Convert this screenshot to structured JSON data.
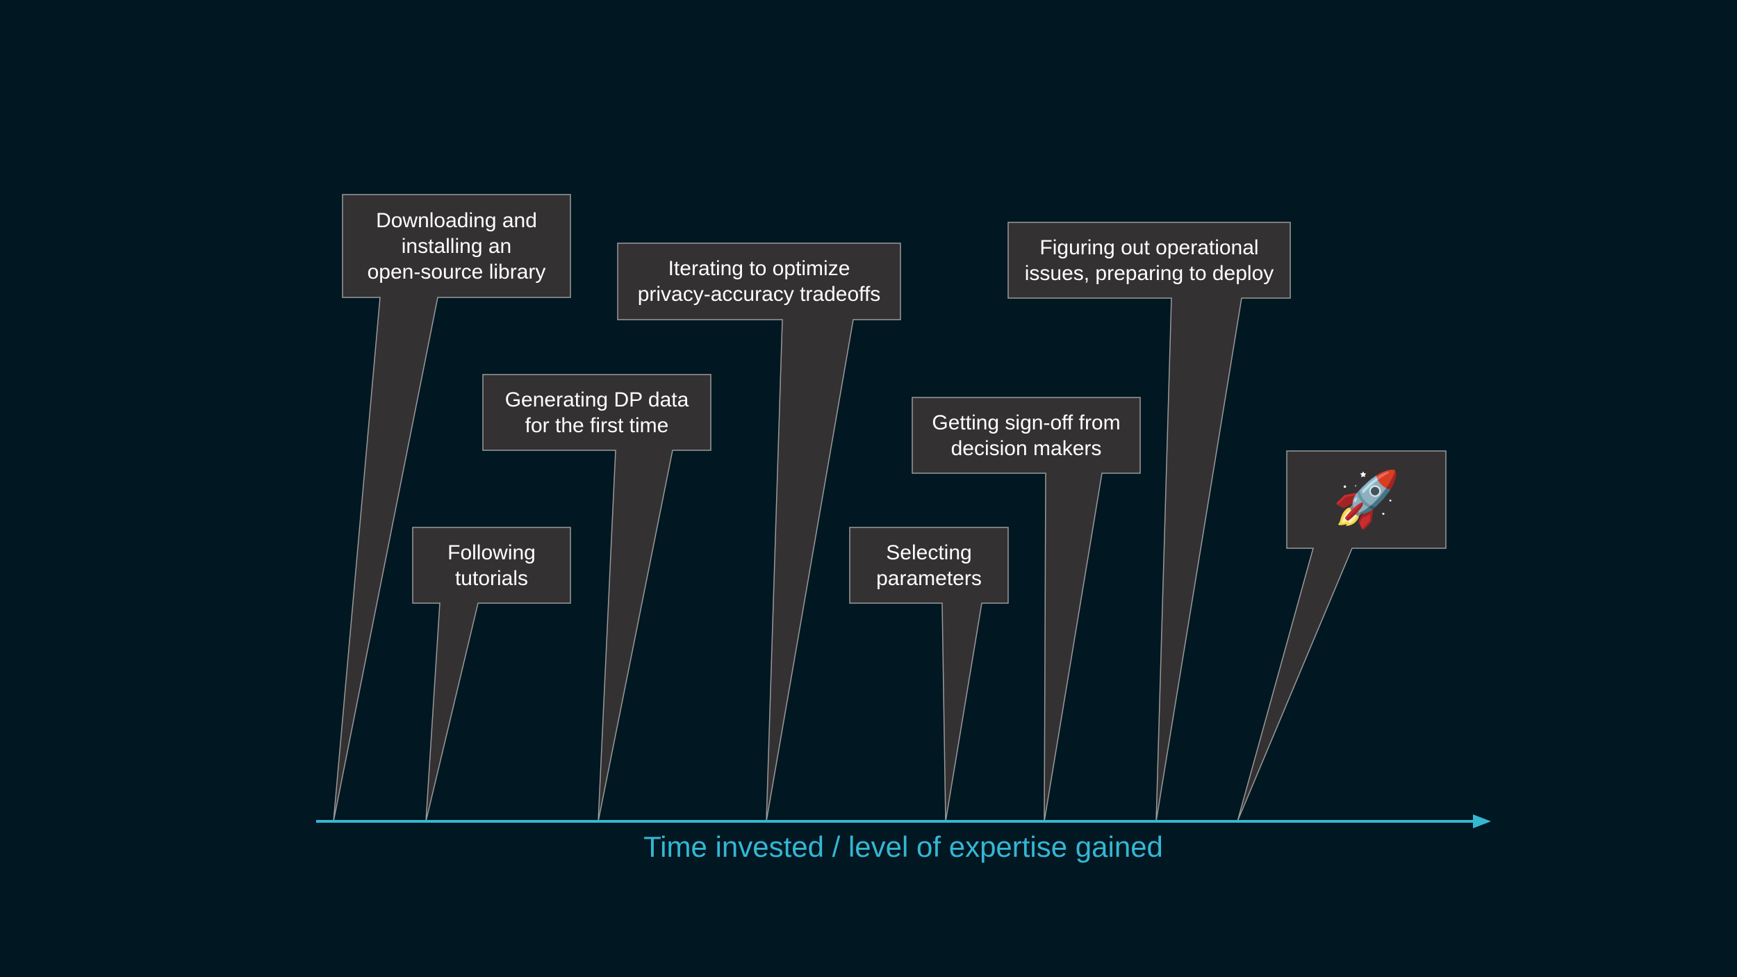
{
  "axis": {
    "label": "Time invested / level of expertise gained",
    "color": "#34b7d3"
  },
  "callouts": [
    {
      "id": "downloading",
      "text": "Downloading and\ninstalling an\nopen-source library"
    },
    {
      "id": "tutorials",
      "text": "Following\ntutorials"
    },
    {
      "id": "generating",
      "text": "Generating DP data\nfor the first time"
    },
    {
      "id": "iterating",
      "text": "Iterating to optimize\nprivacy-accuracy tradeoffs"
    },
    {
      "id": "selecting",
      "text": "Selecting\nparameters"
    },
    {
      "id": "signoff",
      "text": "Getting sign-off from\ndecision makers"
    },
    {
      "id": "operational",
      "text": "Figuring out operational\nissues, preparing to deploy"
    },
    {
      "id": "launch",
      "text": "🚀",
      "icon": "rocket-icon"
    }
  ],
  "colors": {
    "background": "#011722",
    "callout_fill": "#333132",
    "callout_border": "#9a9a9a",
    "text": "#ffffff"
  }
}
